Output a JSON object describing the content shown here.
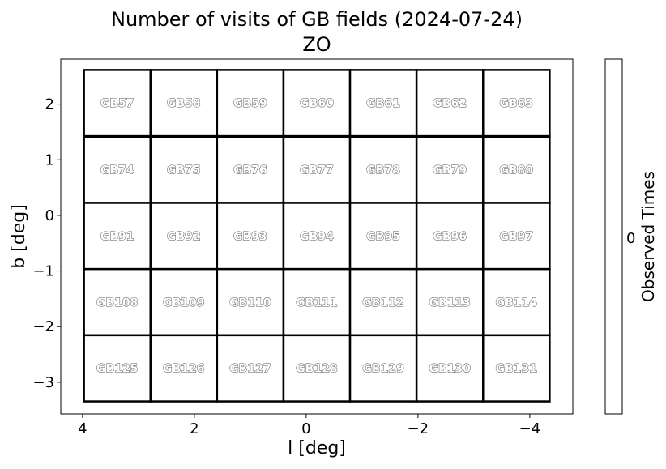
{
  "chart_data": {
    "type": "heatmap",
    "title": "Number of visits of GB fields (2024-07-24)",
    "subtitle": "ZO",
    "xlabel": "l [deg]",
    "ylabel": "b [deg]",
    "xlim": [
      4.39,
      -4.77
    ],
    "ylim": [
      -3.57,
      2.81
    ],
    "xticks": [
      4,
      2,
      0,
      -2,
      -4
    ],
    "xtick_labels": [
      "4",
      "2",
      "0",
      "−2",
      "−4"
    ],
    "yticks": [
      2,
      1,
      0,
      -1,
      -2,
      -3
    ],
    "ytick_labels": [
      "2",
      "1",
      "0",
      "−1",
      "−2",
      "−3"
    ],
    "field_size_deg": 1.19,
    "columns_l": [
      3.38,
      2.19,
      1.0,
      -0.19,
      -1.38,
      -2.57,
      -3.76
    ],
    "rows_b": [
      2.02,
      0.82,
      -0.37,
      -1.56,
      -2.75
    ],
    "fields": [
      [
        "GB57",
        "GB58",
        "GB59",
        "GB60",
        "GB61",
        "GB62",
        "GB63"
      ],
      [
        "GB74",
        "GB75",
        "GB76",
        "GB77",
        "GB78",
        "GB79",
        "GB80"
      ],
      [
        "GB91",
        "GB92",
        "GB93",
        "GB94",
        "GB95",
        "GB96",
        "GB97"
      ],
      [
        "GB108",
        "GB109",
        "GB110",
        "GB111",
        "GB112",
        "GB113",
        "GB114"
      ],
      [
        "GB125",
        "GB126",
        "GB127",
        "GB128",
        "GB129",
        "GB130",
        "GB131"
      ]
    ],
    "values": "all 0",
    "colorbar": {
      "label": "Observed Times",
      "tick_labels": [
        "0"
      ]
    },
    "grid": false
  }
}
